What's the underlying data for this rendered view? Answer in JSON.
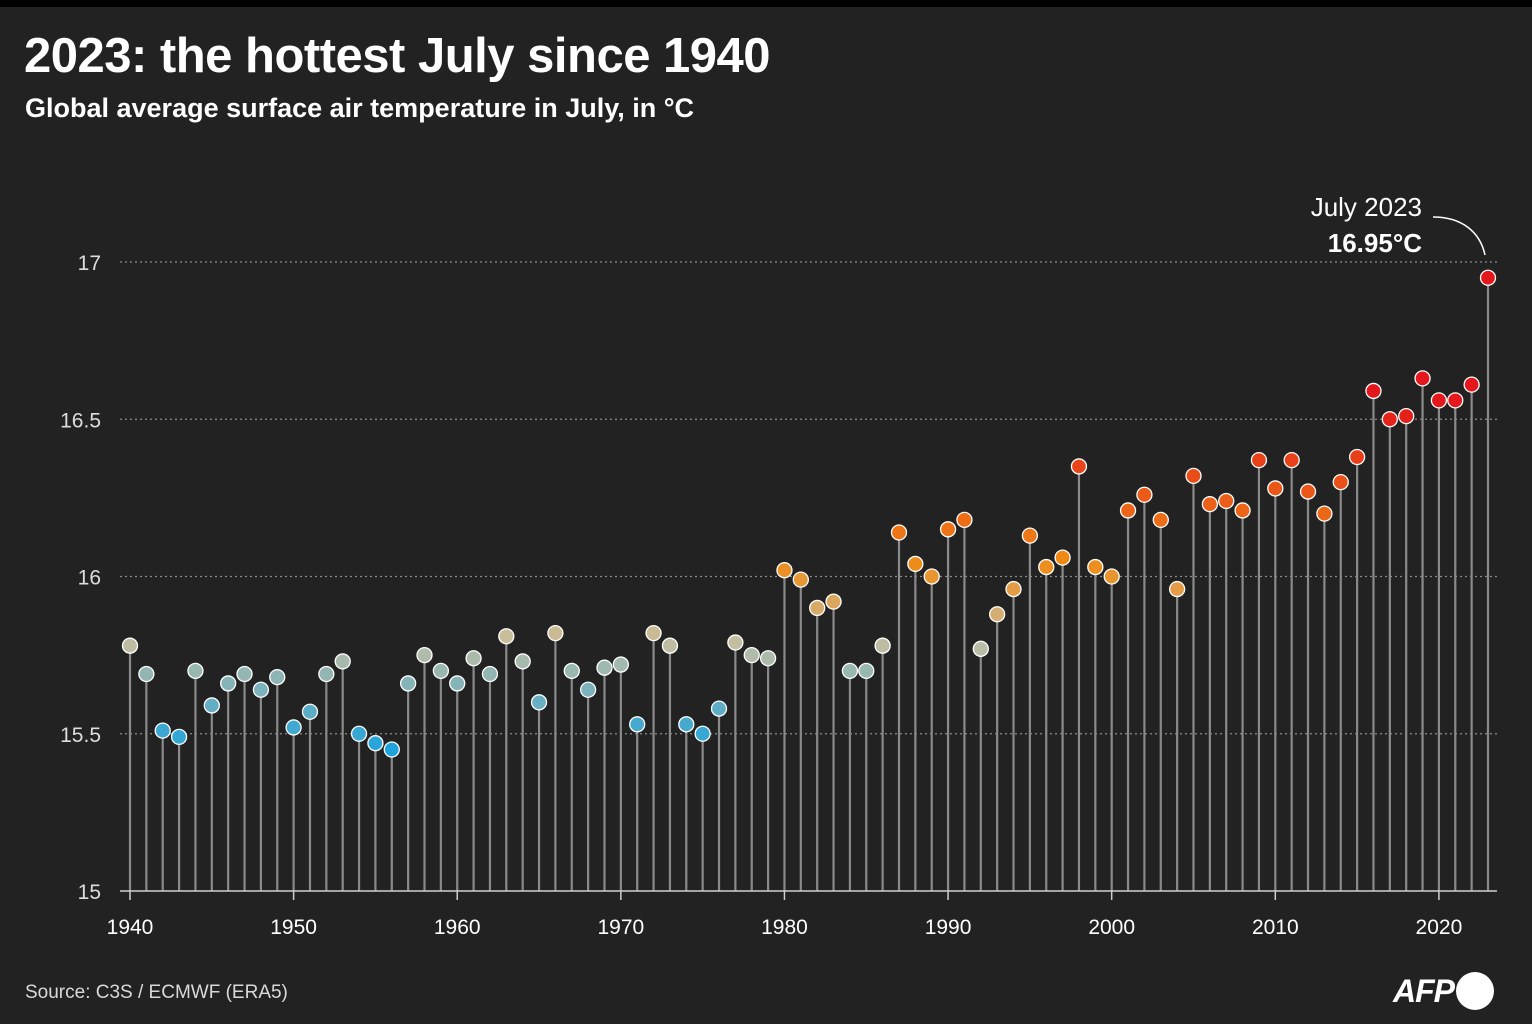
{
  "header": {
    "title": "2023: the hottest July since 1940",
    "subtitle": "Global average surface air temperature in July, in °C"
  },
  "footer": {
    "source": "Source: C3S / ECMWF (ERA5)",
    "logo": "AFP"
  },
  "colors": {
    "background": "#222222",
    "stem": "#8a8a8a",
    "grid": "#8c8c8c",
    "cold": "#1fa3dc",
    "neutral": "#c8bfa0",
    "warm": "#f08a14",
    "hot": "#e4171c"
  },
  "chart_data": {
    "type": "lollipop",
    "title": "2023: the hottest July since 1940",
    "subtitle": "Global average surface air temperature in July, in °C",
    "xlabel": "",
    "ylabel": "°C",
    "xlim": [
      1940,
      2023
    ],
    "ylim": [
      15,
      17
    ],
    "yticks": [
      15,
      15.5,
      16,
      16.5,
      17
    ],
    "ytick_labels": [
      "15",
      "15.5",
      "16",
      "16.5",
      "17"
    ],
    "xticks": [
      1940,
      1950,
      1960,
      1970,
      1980,
      1990,
      2000,
      2010,
      2020
    ],
    "xtick_labels": [
      "1940",
      "1950",
      "1960",
      "1970",
      "1980",
      "1990",
      "2000",
      "2010",
      "2020"
    ],
    "grid": true,
    "annotation": {
      "year": 2023,
      "label": "July 2023",
      "value_label": "16.95°C"
    },
    "x": [
      1940,
      1941,
      1942,
      1943,
      1944,
      1945,
      1946,
      1947,
      1948,
      1949,
      1950,
      1951,
      1952,
      1953,
      1954,
      1955,
      1956,
      1957,
      1958,
      1959,
      1960,
      1961,
      1962,
      1963,
      1964,
      1965,
      1966,
      1967,
      1968,
      1969,
      1970,
      1971,
      1972,
      1973,
      1974,
      1975,
      1976,
      1977,
      1978,
      1979,
      1980,
      1981,
      1982,
      1983,
      1984,
      1985,
      1986,
      1987,
      1988,
      1989,
      1990,
      1991,
      1992,
      1993,
      1994,
      1995,
      1996,
      1997,
      1998,
      1999,
      2000,
      2001,
      2002,
      2003,
      2004,
      2005,
      2006,
      2007,
      2008,
      2009,
      2010,
      2011,
      2012,
      2013,
      2014,
      2015,
      2016,
      2017,
      2018,
      2019,
      2020,
      2021,
      2022,
      2023
    ],
    "values": [
      15.78,
      15.69,
      15.51,
      15.49,
      15.7,
      15.59,
      15.66,
      15.69,
      15.64,
      15.68,
      15.52,
      15.57,
      15.69,
      15.73,
      15.5,
      15.47,
      15.45,
      15.66,
      15.75,
      15.7,
      15.66,
      15.74,
      15.69,
      15.81,
      15.73,
      15.6,
      15.82,
      15.7,
      15.64,
      15.71,
      15.72,
      15.53,
      15.82,
      15.78,
      15.53,
      15.5,
      15.58,
      15.79,
      15.75,
      15.74,
      16.02,
      15.99,
      15.9,
      15.92,
      15.7,
      15.7,
      15.78,
      16.14,
      16.04,
      16.0,
      16.15,
      16.18,
      15.77,
      15.88,
      15.96,
      16.13,
      16.03,
      16.06,
      16.35,
      16.03,
      16.0,
      16.21,
      16.26,
      16.18,
      15.96,
      16.32,
      16.23,
      16.24,
      16.21,
      16.37,
      16.28,
      16.37,
      16.27,
      16.2,
      16.3,
      16.38,
      16.59,
      16.5,
      16.51,
      16.63,
      16.56,
      16.56,
      16.61,
      16.95
    ]
  }
}
